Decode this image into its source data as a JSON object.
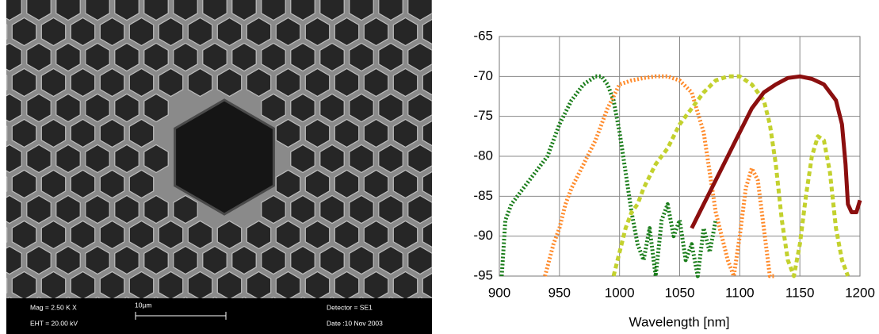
{
  "micrograph": {
    "mag": "Mag =  2.50 K X",
    "eht": "EHT = 20.00 kV",
    "scale": "10µm",
    "detector": "Detector = SE1",
    "date": "Date :10 Nov 2003"
  },
  "chart_data": {
    "type": "line",
    "x_label": "Wavelength [nm]",
    "xlim": [
      900,
      1200
    ],
    "xticks": [
      900,
      950,
      1000,
      1050,
      1100,
      1150,
      1200
    ],
    "ylim": [
      -95,
      -65
    ],
    "yticks": [
      -95,
      -90,
      -85,
      -80,
      -75,
      -70,
      -65
    ],
    "grid": true,
    "series": [
      {
        "color": "#1a7d1a",
        "x": [
          902,
          905,
          910,
          915,
          920,
          930,
          940,
          950,
          960,
          970,
          980,
          985,
          990,
          995,
          1000,
          1005,
          1010,
          1015,
          1020,
          1025,
          1030,
          1035,
          1040,
          1045,
          1050,
          1055,
          1060,
          1065,
          1070,
          1075,
          1080
        ],
        "values": [
          -95,
          -88,
          -86,
          -85,
          -84,
          -82,
          -80,
          -76,
          -73,
          -71,
          -70,
          -70,
          -71,
          -73,
          -77,
          -82,
          -87,
          -91,
          -93,
          -89,
          -95,
          -88,
          -86,
          -90,
          -88,
          -93,
          -91,
          -95,
          -89,
          -92,
          -88
        ]
      },
      {
        "color": "#ff8a2a",
        "x": [
          938,
          945,
          950,
          955,
          960,
          970,
          980,
          990,
          1000,
          1010,
          1020,
          1030,
          1040,
          1050,
          1060,
          1070,
          1075,
          1080,
          1085,
          1090,
          1095,
          1100,
          1105,
          1110,
          1115,
          1120,
          1125,
          1130
        ],
        "values": [
          -95,
          -91,
          -89,
          -86,
          -84,
          -81,
          -78,
          -74,
          -71,
          -70.5,
          -70.2,
          -70,
          -70,
          -70.5,
          -72,
          -77,
          -82,
          -87,
          -90,
          -93,
          -95,
          -90,
          -84,
          -81.5,
          -83,
          -89,
          -95,
          -95
        ]
      },
      {
        "color": "#c3d12e",
        "x": [
          995,
          1000,
          1005,
          1010,
          1015,
          1020,
          1030,
          1040,
          1050,
          1060,
          1070,
          1080,
          1090,
          1100,
          1110,
          1120,
          1125,
          1130,
          1135,
          1140,
          1145,
          1150,
          1155,
          1160,
          1165,
          1170,
          1175,
          1180,
          1185,
          1190
        ],
        "values": [
          -95,
          -92,
          -89,
          -87,
          -86,
          -84,
          -81,
          -79,
          -76,
          -74,
          -72,
          -70.5,
          -70,
          -70,
          -71,
          -73,
          -76,
          -81,
          -88,
          -93,
          -95,
          -91,
          -85,
          -80,
          -77.5,
          -78,
          -82,
          -89,
          -93,
          -95
        ]
      },
      {
        "color": "#8b0f0f",
        "x": [
          1060,
          1070,
          1080,
          1090,
          1100,
          1110,
          1120,
          1130,
          1140,
          1150,
          1160,
          1170,
          1180,
          1185,
          1188,
          1190,
          1193,
          1197,
          1200
        ],
        "values": [
          -89,
          -86,
          -83,
          -80,
          -77,
          -74,
          -72,
          -71,
          -70.2,
          -70,
          -70.3,
          -71,
          -73,
          -76,
          -81,
          -86,
          -87,
          -87,
          -85.5
        ]
      }
    ]
  }
}
